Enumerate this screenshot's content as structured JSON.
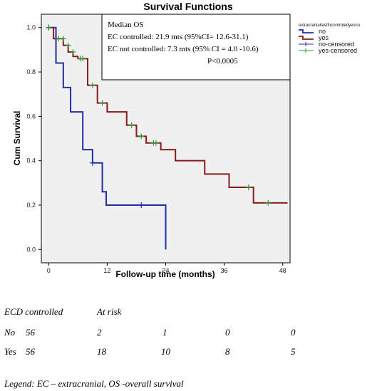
{
  "chart_data": {
    "type": "line",
    "title": "Survival Functions",
    "xlabel": "Follow-up time (months)",
    "ylabel": "Cum Survival",
    "xlim": [
      -1.5,
      49.5
    ],
    "ylim": [
      -0.06,
      1.06
    ],
    "xticks": [
      "0",
      "12",
      "24",
      "36",
      "48"
    ],
    "yticks": [
      "0.0",
      "0.2",
      "0.4",
      "0.6",
      "0.8",
      "1.0"
    ],
    "grid": false,
    "background": "#f0f0f0",
    "legend": {
      "title": "extracraniallastfucontroledyesno",
      "placement": "top-right outside",
      "entries": [
        {
          "label": "no",
          "color": "#1f2fa8",
          "kind": "line"
        },
        {
          "label": "yes",
          "color": "#8b1a1a",
          "kind": "line"
        },
        {
          "label": "no-censored",
          "color": "#1f2fa8",
          "kind": "cross"
        },
        {
          "label": "yes-censored",
          "color": "#2e9e3a",
          "kind": "cross"
        }
      ]
    },
    "annotation": {
      "lines": [
        "Median OS",
        "EC controlled: 21.9 mts (95%CI= 12.6-31.1)",
        "EC not controlled: 7.3 mts (95% CI = 4.0 -10.6)",
        "P<0.0005"
      ]
    },
    "series": [
      {
        "name": "no",
        "color": "#1f2fa8",
        "steps": [
          [
            0,
            1.0
          ],
          [
            1.5,
            0.84
          ],
          [
            3,
            0.73
          ],
          [
            4.5,
            0.62
          ],
          [
            7,
            0.45
          ],
          [
            9,
            0.39
          ],
          [
            11,
            0.26
          ],
          [
            11.8,
            0.2
          ],
          [
            24,
            0.0
          ]
        ],
        "end_x": 24,
        "censored": [
          [
            0,
            1.0
          ],
          [
            9,
            0.39
          ],
          [
            19,
            0.2
          ]
        ],
        "censor_color": "#1f2fa8"
      },
      {
        "name": "yes",
        "color": "#8b1a1a",
        "steps": [
          [
            0,
            1.0
          ],
          [
            1,
            0.95
          ],
          [
            3,
            0.92
          ],
          [
            4,
            0.89
          ],
          [
            5,
            0.87
          ],
          [
            6,
            0.86
          ],
          [
            8,
            0.74
          ],
          [
            10,
            0.66
          ],
          [
            12,
            0.62
          ],
          [
            16,
            0.56
          ],
          [
            18,
            0.51
          ],
          [
            20,
            0.48
          ],
          [
            23,
            0.45
          ],
          [
            26,
            0.4
          ],
          [
            32,
            0.34
          ],
          [
            37,
            0.28
          ],
          [
            42,
            0.21
          ]
        ],
        "end_x": 49,
        "censored": [
          [
            0,
            1.0
          ],
          [
            2,
            0.95
          ],
          [
            3,
            0.95
          ],
          [
            4,
            0.92
          ],
          [
            5,
            0.89
          ],
          [
            6.5,
            0.86
          ],
          [
            7,
            0.86
          ],
          [
            9,
            0.74
          ],
          [
            11,
            0.66
          ],
          [
            17,
            0.56
          ],
          [
            19,
            0.51
          ],
          [
            21.5,
            0.48
          ],
          [
            22,
            0.48
          ],
          [
            41,
            0.28
          ],
          [
            45,
            0.21
          ]
        ],
        "censor_color": "#2e9e3a"
      }
    ]
  },
  "risk_table": {
    "header": {
      "group": "ECD controlled",
      "at_risk": "At risk"
    },
    "rows": [
      {
        "label": "No",
        "n": "56",
        "counts": [
          "2",
          "1",
          "0",
          "0"
        ]
      },
      {
        "label": "Yes",
        "n": "56",
        "counts": [
          "18",
          "10",
          "8",
          "5"
        ]
      }
    ]
  },
  "legend_note": "Legend: EC – extracranial, OS -overall survival"
}
